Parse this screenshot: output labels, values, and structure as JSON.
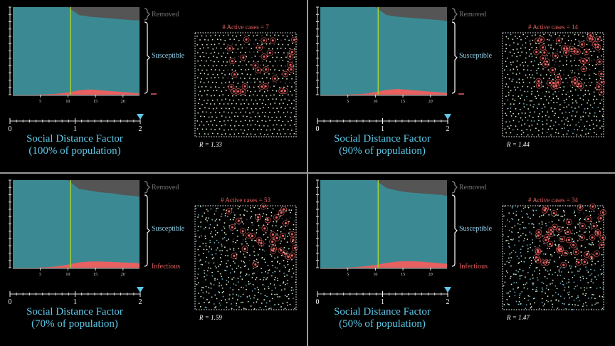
{
  "panels": [
    {
      "chart": {
        "x": [
          0,
          2,
          4,
          6,
          8,
          10,
          12,
          14,
          16,
          18,
          20,
          22,
          23
        ],
        "xlim": [
          0,
          23
        ],
        "ylim": [
          0,
          100
        ],
        "xticks": [
          5,
          10,
          15,
          20
        ],
        "vline": 10.5,
        "infectious": [
          0,
          0,
          0,
          0.5,
          1,
          2.5,
          5,
          6,
          5,
          4,
          3,
          2,
          1.5
        ],
        "removed": [
          0,
          0,
          0,
          0,
          0,
          0,
          9,
          11,
          12,
          13,
          14,
          15,
          15
        ],
        "removed_label": "Removed",
        "susceptible_label": "Susceptible"
      },
      "slider": {
        "ticks": [
          0,
          1,
          2
        ],
        "value": 2
      },
      "caption_line1": "Social Distance Factor",
      "caption_line2": "(100% of population)",
      "active_cases_label": "# Active cases = 7",
      "r_label": "R = 1.33"
    },
    {
      "chart": {
        "x": [
          0,
          2,
          4,
          6,
          8,
          10,
          12,
          14,
          16,
          18,
          20,
          22,
          23
        ],
        "xlim": [
          0,
          23
        ],
        "ylim": [
          0,
          100
        ],
        "xticks": [
          5,
          10,
          15,
          20
        ],
        "vline": 10.5,
        "infectious": [
          0,
          0,
          0,
          0.5,
          1,
          3,
          5.5,
          6.5,
          5.5,
          4.5,
          3.5,
          2.5,
          2
        ],
        "removed": [
          0,
          0,
          0,
          0,
          0,
          0,
          9,
          11,
          12,
          13,
          14,
          15,
          16
        ],
        "removed_label": "Removed",
        "susceptible_label": "Susceptible"
      },
      "slider": {
        "ticks": [
          0,
          1,
          2
        ],
        "value": 2
      },
      "caption_line1": "Social Distance Factor",
      "caption_line2": "(90% of population)",
      "active_cases_label": "# Active cases = 14",
      "r_label": "R = 1.44"
    },
    {
      "chart": {
        "x": [
          0,
          2,
          4,
          6,
          8,
          10,
          12,
          14,
          16,
          18,
          20,
          22,
          23
        ],
        "xlim": [
          0,
          23
        ],
        "ylim": [
          0,
          100
        ],
        "xticks": [
          5,
          10,
          15,
          20
        ],
        "vline": 10.5,
        "infectious": [
          0,
          0,
          0,
          0.5,
          1.5,
          3.5,
          6,
          7,
          7,
          6.5,
          6,
          5.5,
          5
        ],
        "removed": [
          0,
          0,
          0,
          0,
          0,
          0,
          10,
          12,
          14,
          15,
          17,
          18,
          19
        ],
        "removed_label": "Removed",
        "susceptible_label": "Susceptible",
        "infectious_label": "Infectious"
      },
      "slider": {
        "ticks": [
          0,
          1,
          2
        ],
        "value": 2
      },
      "caption_line1": "Social Distance Factor",
      "caption_line2": "(70% of population)",
      "active_cases_label": "# Active cases = 53",
      "r_label": "R = 1.59"
    },
    {
      "chart": {
        "x": [
          0,
          2,
          4,
          6,
          8,
          10,
          12,
          14,
          16,
          18,
          20,
          22,
          23
        ],
        "xlim": [
          0,
          23
        ],
        "ylim": [
          0,
          100
        ],
        "xticks": [
          5,
          10,
          15,
          20
        ],
        "vline": 10.5,
        "infectious": [
          0,
          0,
          0,
          0.5,
          1.5,
          3,
          5.5,
          7,
          7.5,
          7,
          6,
          5,
          4.5
        ],
        "removed": [
          0,
          0,
          0,
          0,
          0,
          0,
          9,
          12,
          14,
          15,
          16,
          17,
          18
        ],
        "removed_label": "Removed",
        "susceptible_label": "Susceptible",
        "infectious_label": "Infectious"
      },
      "slider": {
        "ticks": [
          0,
          1,
          2
        ],
        "value": 2
      },
      "caption_line1": "Social Distance Factor",
      "caption_line2": "(50% of population)",
      "active_cases_label": "# Active cases = 34",
      "r_label": "R = 1.47"
    }
  ]
}
